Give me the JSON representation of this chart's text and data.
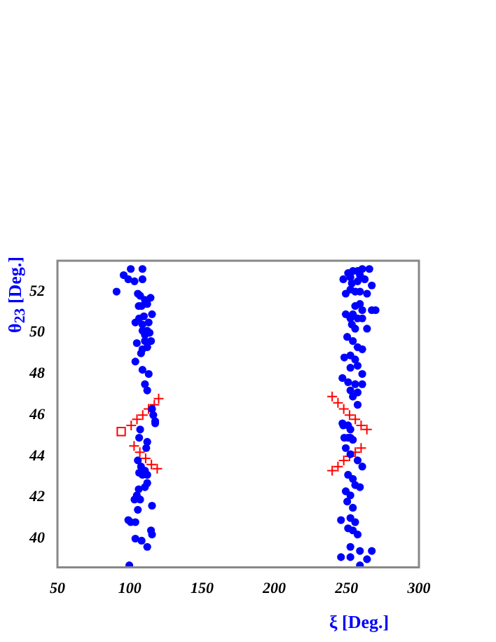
{
  "chart_data": {
    "type": "scatter",
    "xlabel": "ξ [Deg.]",
    "ylabel": "θ$_{23}$ [Deg.]",
    "xlim": [
      50,
      300
    ],
    "ylim": [
      38.6,
      53.5
    ],
    "xticks": [
      50,
      100,
      150,
      200,
      250,
      300
    ],
    "yticks": [
      40,
      42,
      44,
      46,
      48,
      50,
      52
    ],
    "grid": false,
    "legend": false,
    "series": [
      {
        "color": "#0000ff",
        "marker": "circle",
        "x": [
          100.7,
          108.8,
          95.8,
          99.0,
          103.3,
          108.8,
          90.9,
          105.6,
          107.2,
          110.5,
          114.4,
          106.2,
          108.2,
          112.1,
          106.5,
          109.8,
          115.4,
          103.9,
          108.8,
          113.1,
          108.8,
          112.1,
          113.7,
          110.5,
          104.9,
          110.5,
          114.7,
          108.8,
          112.1,
          107.8,
          103.9,
          108.8,
          113.1,
          110.5,
          112.1,
          115.4,
          117.6,
          116.3,
          117.6,
          107.2,
          106.5,
          112.1,
          111.4,
          105.6,
          107.8,
          110.5,
          106.5,
          108.8,
          112.1,
          112.1,
          110.5,
          106.2,
          104.9,
          103.3,
          107.2,
          105.6,
          115.4,
          99.0,
          100.7,
          103.9,
          114.7,
          115.4,
          103.9,
          108.2,
          112.1,
          99.7,
          247.7,
          251.0,
          254.3,
          257.6,
          260.8,
          265.7,
          252.6,
          259.2,
          262.5,
          257.6,
          253.6,
          267.4,
          249.4,
          252.6,
          255.9,
          259.2,
          264.1,
          259.2,
          255.9,
          260.8,
          267.4,
          270.0,
          249.4,
          254.3,
          252.6,
          257.6,
          260.8,
          253.6,
          255.9,
          264.1,
          250.4,
          254.3,
          257.6,
          260.8,
          248.4,
          252.6,
          255.9,
          257.6,
          252.6,
          260.8,
          247.1,
          251.0,
          255.9,
          260.8,
          252.6,
          257.6,
          254.3,
          257.6,
          247.1,
          251.0,
          248.4,
          252.6,
          247.7,
          252.6,
          251.0,
          254.3,
          249.4,
          252.6,
          257.6,
          260.8,
          251.0,
          254.3,
          255.9,
          259.2,
          249.4,
          252.6,
          250.4,
          254.3,
          246.1,
          252.6,
          255.9,
          251.0,
          254.3,
          257.6,
          252.6,
          259.2,
          267.4,
          246.1,
          252.6,
          264.1,
          259.2
        ],
        "values": [
          53.1,
          53.1,
          52.8,
          52.6,
          52.5,
          52.6,
          52.0,
          51.9,
          51.8,
          51.6,
          51.7,
          51.3,
          51.3,
          51.4,
          50.7,
          50.8,
          50.9,
          50.5,
          50.4,
          50.5,
          50.1,
          50.1,
          50.0,
          49.9,
          49.5,
          49.6,
          49.6,
          49.2,
          49.3,
          49.0,
          48.6,
          48.2,
          48.0,
          47.5,
          47.2,
          46.3,
          45.7,
          46.0,
          45.6,
          45.3,
          44.9,
          44.7,
          44.4,
          43.8,
          43.5,
          43.3,
          43.2,
          43.1,
          43.1,
          42.7,
          42.5,
          42.4,
          42.1,
          41.9,
          41.9,
          41.4,
          41.6,
          40.9,
          40.8,
          40.8,
          40.4,
          40.2,
          40.0,
          39.9,
          39.6,
          38.7,
          52.6,
          52.9,
          53.0,
          53.0,
          53.1,
          53.1,
          52.7,
          52.8,
          52.6,
          52.5,
          52.4,
          52.3,
          51.9,
          52.1,
          52.0,
          52.0,
          51.9,
          51.4,
          51.3,
          51.1,
          51.1,
          51.1,
          50.9,
          50.9,
          50.7,
          50.7,
          50.7,
          50.4,
          50.2,
          50.2,
          49.8,
          49.6,
          49.3,
          49.2,
          48.8,
          48.9,
          48.7,
          48.4,
          48.3,
          48.0,
          47.8,
          47.6,
          47.5,
          47.5,
          47.2,
          47.1,
          46.9,
          46.5,
          45.6,
          45.5,
          44.9,
          44.9,
          45.5,
          45.3,
          44.9,
          44.8,
          44.4,
          44.1,
          43.8,
          43.5,
          43.1,
          42.9,
          42.6,
          42.5,
          42.3,
          42.1,
          41.8,
          41.5,
          40.9,
          41.0,
          40.8,
          40.5,
          40.4,
          40.2,
          39.6,
          39.4,
          39.4,
          39.1,
          39.1,
          39.0,
          38.7
        ]
      },
      {
        "color": "#ff0000",
        "marker": "cross",
        "x": [
          101,
          105,
          109,
          113,
          117,
          120,
          103,
          107,
          111,
          115,
          119,
          240,
          244,
          248,
          252,
          256,
          260,
          264,
          240,
          244,
          248,
          252,
          256,
          260
        ],
        "values": [
          45.5,
          45.8,
          46.0,
          46.3,
          46.5,
          46.8,
          44.5,
          44.2,
          43.9,
          43.6,
          43.4,
          46.9,
          46.6,
          46.3,
          46.0,
          45.8,
          45.5,
          45.3,
          43.3,
          43.5,
          43.8,
          44.0,
          44.2,
          44.4
        ]
      },
      {
        "color": "#ff0000",
        "marker": "square",
        "x": [
          94.1
        ],
        "values": [
          45.2
        ]
      }
    ]
  }
}
